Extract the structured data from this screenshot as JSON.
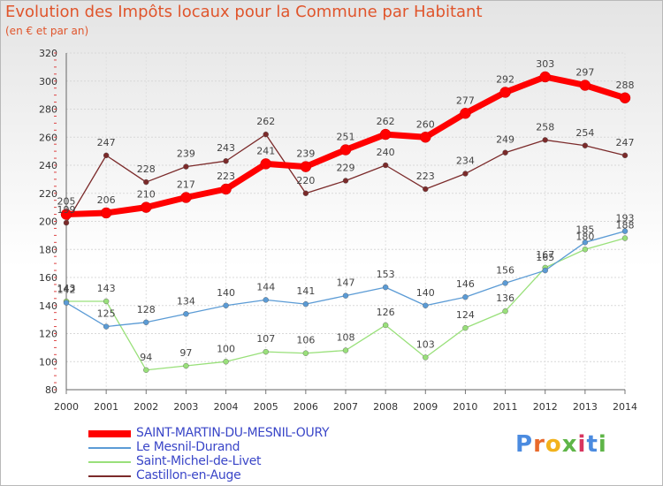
{
  "header": {
    "title": "Evolution des Impôts locaux pour la Commune par Habitant",
    "subtitle": "(en € et par an)"
  },
  "logo": {
    "text": "Proxiti",
    "letter_colors": [
      "#4b8be0",
      "#e8692b",
      "#f2b21b",
      "#5fb548",
      "#d8355f",
      "#4b8be0",
      "#5fb548"
    ]
  },
  "chart_data": {
    "type": "line",
    "x": [
      "2000",
      "2001",
      "2002",
      "2003",
      "2004",
      "2005",
      "2006",
      "2007",
      "2008",
      "2009",
      "2010",
      "2011",
      "2012",
      "2013",
      "2014"
    ],
    "ylim": [
      80,
      320
    ],
    "yticks": [
      80,
      100,
      120,
      140,
      160,
      180,
      200,
      220,
      240,
      260,
      280,
      300,
      320
    ],
    "grid": true,
    "legend_position": "bottom-left",
    "series": [
      {
        "name": "SAINT-MARTIN-DU-MESNIL-OURY",
        "color": "#ff0000",
        "values": [
          205,
          206,
          210,
          217,
          223,
          241,
          239,
          251,
          262,
          260,
          277,
          292,
          303,
          297,
          288
        ]
      },
      {
        "name": "Le Mesnil-Durand",
        "color": "#5b9bd5",
        "values": [
          142,
          125,
          128,
          134,
          140,
          144,
          141,
          147,
          153,
          140,
          146,
          156,
          165,
          185,
          193
        ]
      },
      {
        "name": "Saint-Michel-de-Livet",
        "color": "#99e07a",
        "values": [
          143,
          143,
          94,
          97,
          100,
          107,
          106,
          108,
          126,
          103,
          124,
          136,
          167,
          180,
          188
        ]
      },
      {
        "name": "Castillon-en-Auge",
        "color": "#7b2a2a",
        "values": [
          199,
          247,
          228,
          239,
          243,
          262,
          220,
          229,
          240,
          223,
          234,
          249,
          258,
          254,
          247
        ]
      }
    ]
  }
}
